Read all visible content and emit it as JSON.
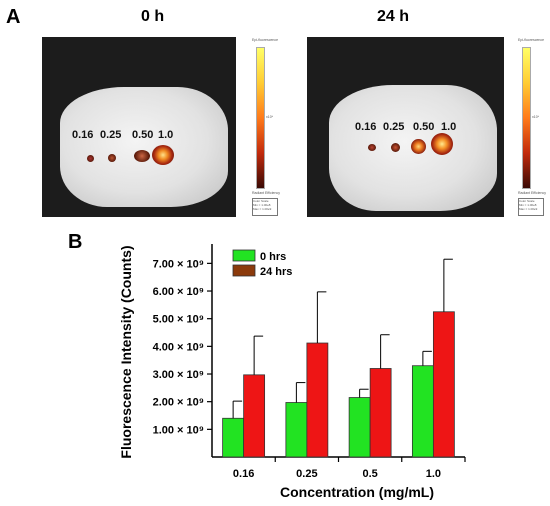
{
  "panel_a": {
    "letter": "A",
    "panels": [
      {
        "time": "0 h",
        "concentrations": [
          "0.16",
          "0.25",
          "0.50",
          "1.0"
        ],
        "scale_title": "Epi-fluorescence",
        "scale_unit": "x10⁹",
        "scale_lines": [
          "Radiant Efficiency",
          "Color Scale",
          "Min = 1.00e8",
          "Max = 1.00e9"
        ]
      },
      {
        "time": "24 h",
        "concentrations": [
          "0.16",
          "0.25",
          "0.50",
          "1.0"
        ],
        "scale_title": "Epi-fluorescence",
        "scale_unit": "x10⁹",
        "scale_lines": [
          "Radiant Efficiency",
          "Color Scale",
          "Min = 1.00e8",
          "Max = 1.00e9"
        ]
      }
    ]
  },
  "panel_b": {
    "letter": "B"
  },
  "colors": {
    "series_0h": "#22e322",
    "series_24h": "#ee1515",
    "legend_24h": "#8b3a0b",
    "error_bar": "#000000"
  },
  "chart_data": {
    "type": "bar",
    "xlabel": "Concentration (mg/mL)",
    "ylabel": "Fluorescence Intensity (Counts)",
    "categories": [
      "0.16",
      "0.25",
      "0.5",
      "1.0"
    ],
    "ylim": [
      0,
      7700000000.0
    ],
    "yticks": [
      1000000000.0,
      2000000000.0,
      3000000000.0,
      4000000000.0,
      5000000000.0,
      6000000000.0,
      7000000000.0
    ],
    "ytick_labels": [
      "1.00 × 10⁹",
      "2.00 × 10⁹",
      "3.00 × 10⁹",
      "4.00 × 10⁹",
      "5.00 × 10⁹",
      "6.00 × 10⁹",
      "7.00 × 10⁹"
    ],
    "legend_position": "top-left",
    "series": [
      {
        "name": "0 hrs",
        "values": [
          1400000000.0,
          1970000000.0,
          2150000000.0,
          3300000000.0
        ],
        "errors": [
          620000000.0,
          720000000.0,
          300000000.0,
          520000000.0
        ]
      },
      {
        "name": "24 hrs",
        "values": [
          2970000000.0,
          4120000000.0,
          3200000000.0,
          5250000000.0
        ],
        "errors": [
          1400000000.0,
          1850000000.0,
          1220000000.0,
          1900000000.0
        ]
      }
    ]
  }
}
